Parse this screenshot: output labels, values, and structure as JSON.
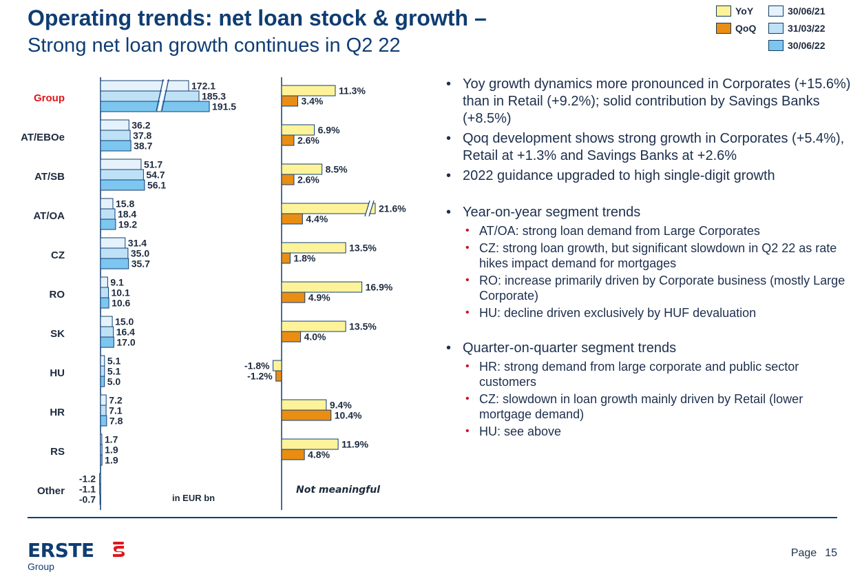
{
  "header": {
    "title": "Operating trends: net loan stock & growth –",
    "subtitle": "Strong net loan growth continues in Q2 22"
  },
  "legend": {
    "yoy": "YoY",
    "qoq": "QoQ",
    "d1": "30/06/21",
    "d2": "31/03/22",
    "d3": "30/06/22"
  },
  "colors": {
    "navy": "#0f3d73",
    "d1": "#e5f2fb",
    "d2": "#bfe1f6",
    "d3": "#7cc6ef",
    "yoy": "#fff39a",
    "qoq": "#ea8d13",
    "group_label": "#e0161b"
  },
  "chart_data": [
    {
      "type": "bar",
      "orientation": "horizontal",
      "unit": "in EUR bn",
      "categories": [
        "Group",
        "AT/EBOe",
        "AT/SB",
        "AT/OA",
        "CZ",
        "RO",
        "SK",
        "HU",
        "HR",
        "RS",
        "Other"
      ],
      "series": [
        {
          "name": "30/06/21",
          "values": [
            172.1,
            36.2,
            51.7,
            15.8,
            31.4,
            9.1,
            15.0,
            5.1,
            7.2,
            1.7,
            -1.2
          ]
        },
        {
          "name": "31/03/22",
          "values": [
            185.3,
            37.8,
            54.7,
            18.4,
            35.0,
            10.1,
            16.4,
            5.1,
            7.1,
            1.9,
            -1.1
          ]
        },
        {
          "name": "30/06/22",
          "values": [
            191.5,
            38.7,
            56.1,
            19.2,
            35.7,
            10.6,
            17.0,
            5.0,
            7.8,
            1.9,
            -0.7
          ]
        }
      ],
      "labels": [
        [
          "172.1",
          "185.3",
          "191.5"
        ],
        [
          "36.2",
          "37.8",
          "38.7"
        ],
        [
          "51.7",
          "54.7",
          "56.1"
        ],
        [
          "15.8",
          "18.4",
          "19.2"
        ],
        [
          "31.4",
          "35.0",
          "35.7"
        ],
        [
          "9.1",
          "10.1",
          "10.6"
        ],
        [
          "15.0",
          "16.4",
          "17.0"
        ],
        [
          "5.1",
          "5.1",
          "5.0"
        ],
        [
          "7.2",
          "7.1",
          "7.8"
        ],
        [
          "1.7",
          "1.9",
          "1.9"
        ],
        [
          "-1.2",
          "-1.1",
          "-0.7"
        ]
      ],
      "axis_break": "Group",
      "note": "in EUR bn"
    },
    {
      "type": "bar",
      "orientation": "horizontal",
      "unit": "%",
      "categories": [
        "Group",
        "AT/EBOe",
        "AT/SB",
        "AT/OA",
        "CZ",
        "RO",
        "SK",
        "HU",
        "HR",
        "RS",
        "Other"
      ],
      "series": [
        {
          "name": "YoY",
          "values": [
            11.3,
            6.9,
            8.5,
            21.6,
            13.5,
            16.9,
            13.5,
            -1.8,
            9.4,
            11.9,
            null
          ]
        },
        {
          "name": "QoQ",
          "values": [
            3.4,
            2.6,
            2.6,
            4.4,
            1.8,
            4.9,
            4.0,
            -1.2,
            10.4,
            4.8,
            null
          ]
        }
      ],
      "labels": [
        [
          "11.3%",
          "3.4%"
        ],
        [
          "6.9%",
          "2.6%"
        ],
        [
          "8.5%",
          "2.6%"
        ],
        [
          "21.6%",
          "4.4%"
        ],
        [
          "13.5%",
          "1.8%"
        ],
        [
          "16.9%",
          "4.9%"
        ],
        [
          "13.5%",
          "4.0%"
        ],
        [
          "-1.8%",
          "-1.2%"
        ],
        [
          "9.4%",
          "10.4%"
        ],
        [
          "11.9%",
          "4.8%"
        ],
        [
          "",
          ""
        ]
      ],
      "axis_break": "AT/OA",
      "note": "Not meaningful"
    }
  ],
  "bullets": [
    {
      "text": "Yoy growth dynamics more pronounced in Corporates (+15.6%) than in Retail (+9.2%); solid contribution by Savings Banks (+8.5%)",
      "sub": []
    },
    {
      "text": "Qoq development shows strong growth in Corporates (+5.4%), Retail at +1.3% and Savings Banks at +2.6%",
      "sub": []
    },
    {
      "text": "2022 guidance upgraded to high single-digit growth",
      "sub": []
    },
    {
      "text": "Year-on-year segment trends",
      "sub": [
        "AT/OA: strong loan demand from Large Corporates",
        "CZ: strong loan growth, but significant slowdown in Q2 22 as rate hikes impact demand for mortgages",
        "RO: increase primarily driven by Corporate business (mostly Large Corporate)",
        "HU: decline driven exclusively by HUF devaluation"
      ]
    },
    {
      "text": "Quarter-on-quarter segment trends",
      "sub": [
        "HR: strong demand from large corporate and public sector customers",
        "CZ: slowdown in loan growth mainly driven by Retail (lower mortgage demand)",
        "HU: see above"
      ]
    }
  ],
  "footer": {
    "logo_text": "ERSTE",
    "logo_sub": "Group",
    "page_label": "Page",
    "page_number": "15"
  }
}
